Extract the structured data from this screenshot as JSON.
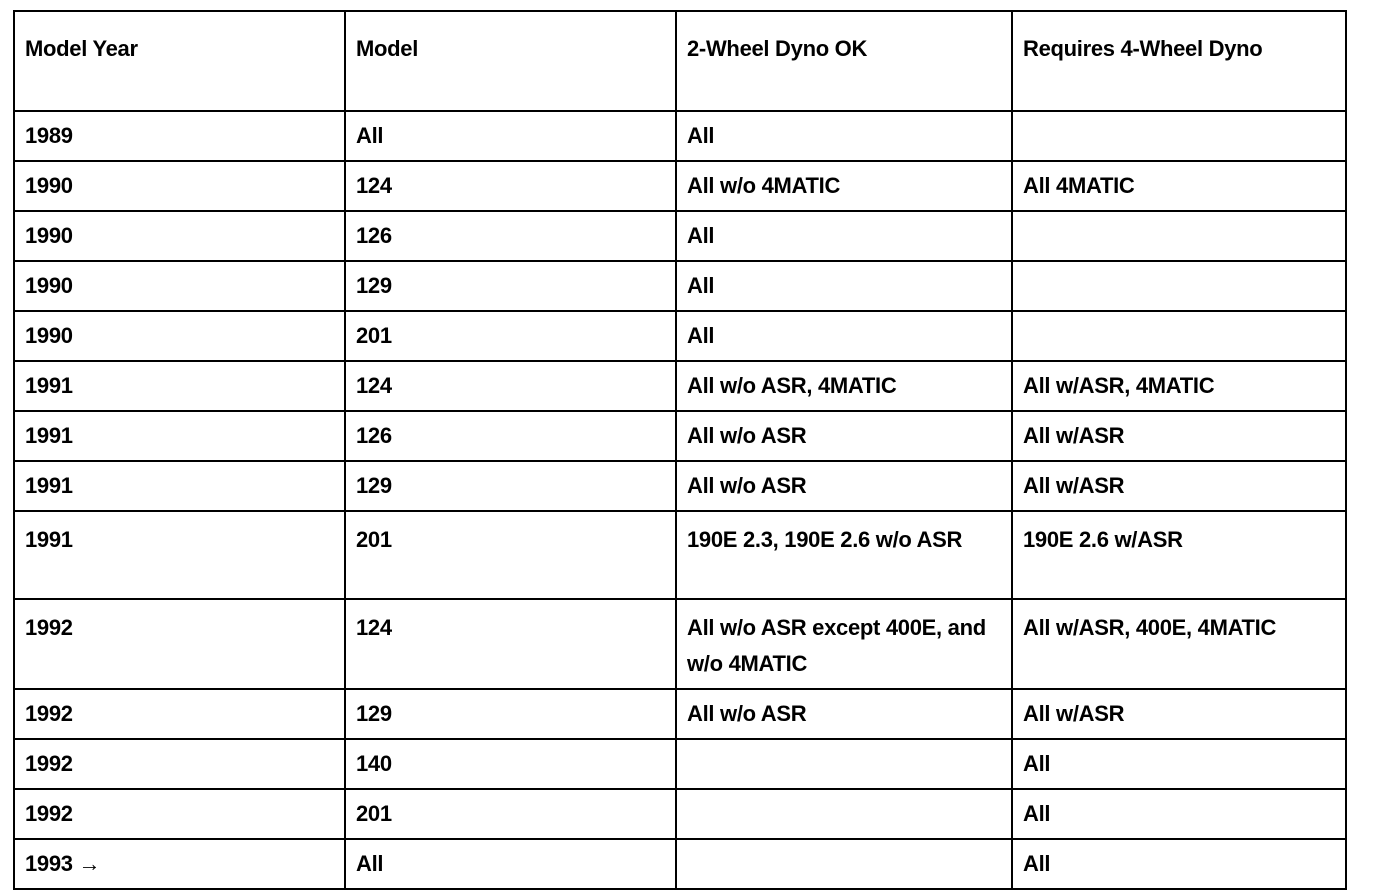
{
  "table": {
    "header": [
      "Model Year",
      "Model",
      "2-Wheel Dyno OK",
      "Requires 4-Wheel Dyno"
    ],
    "rows": [
      [
        "1989",
        "All",
        "All",
        ""
      ],
      [
        "1990",
        "124",
        "All w/o 4MATIC",
        "All 4MATIC"
      ],
      [
        "1990",
        "126",
        "All",
        ""
      ],
      [
        "1990",
        "129",
        "All",
        ""
      ],
      [
        "1990",
        "201",
        "All",
        ""
      ],
      [
        "1991",
        "124",
        "All w/o ASR, 4MATIC",
        "All w/ASR, 4MATIC"
      ],
      [
        "1991",
        "126",
        "All w/o ASR",
        "All w/ASR"
      ],
      [
        "1991",
        "129",
        "All w/o ASR",
        "All w/ASR"
      ],
      [
        "1991",
        "201",
        "190E 2.3, 190E 2.6 w/o ASR",
        "190E 2.6 w/ASR"
      ],
      [
        "1992",
        "124",
        "All w/o ASR except 400E, and w/o 4MATIC",
        "All w/ASR, 400E, 4MATIC"
      ],
      [
        "1992",
        "129",
        "All w/o ASR",
        "All w/ASR"
      ],
      [
        "1992",
        "140",
        "",
        "All"
      ],
      [
        "1992",
        "201",
        "",
        "All"
      ],
      [
        "1993 →",
        "All",
        "",
        "All"
      ]
    ]
  }
}
